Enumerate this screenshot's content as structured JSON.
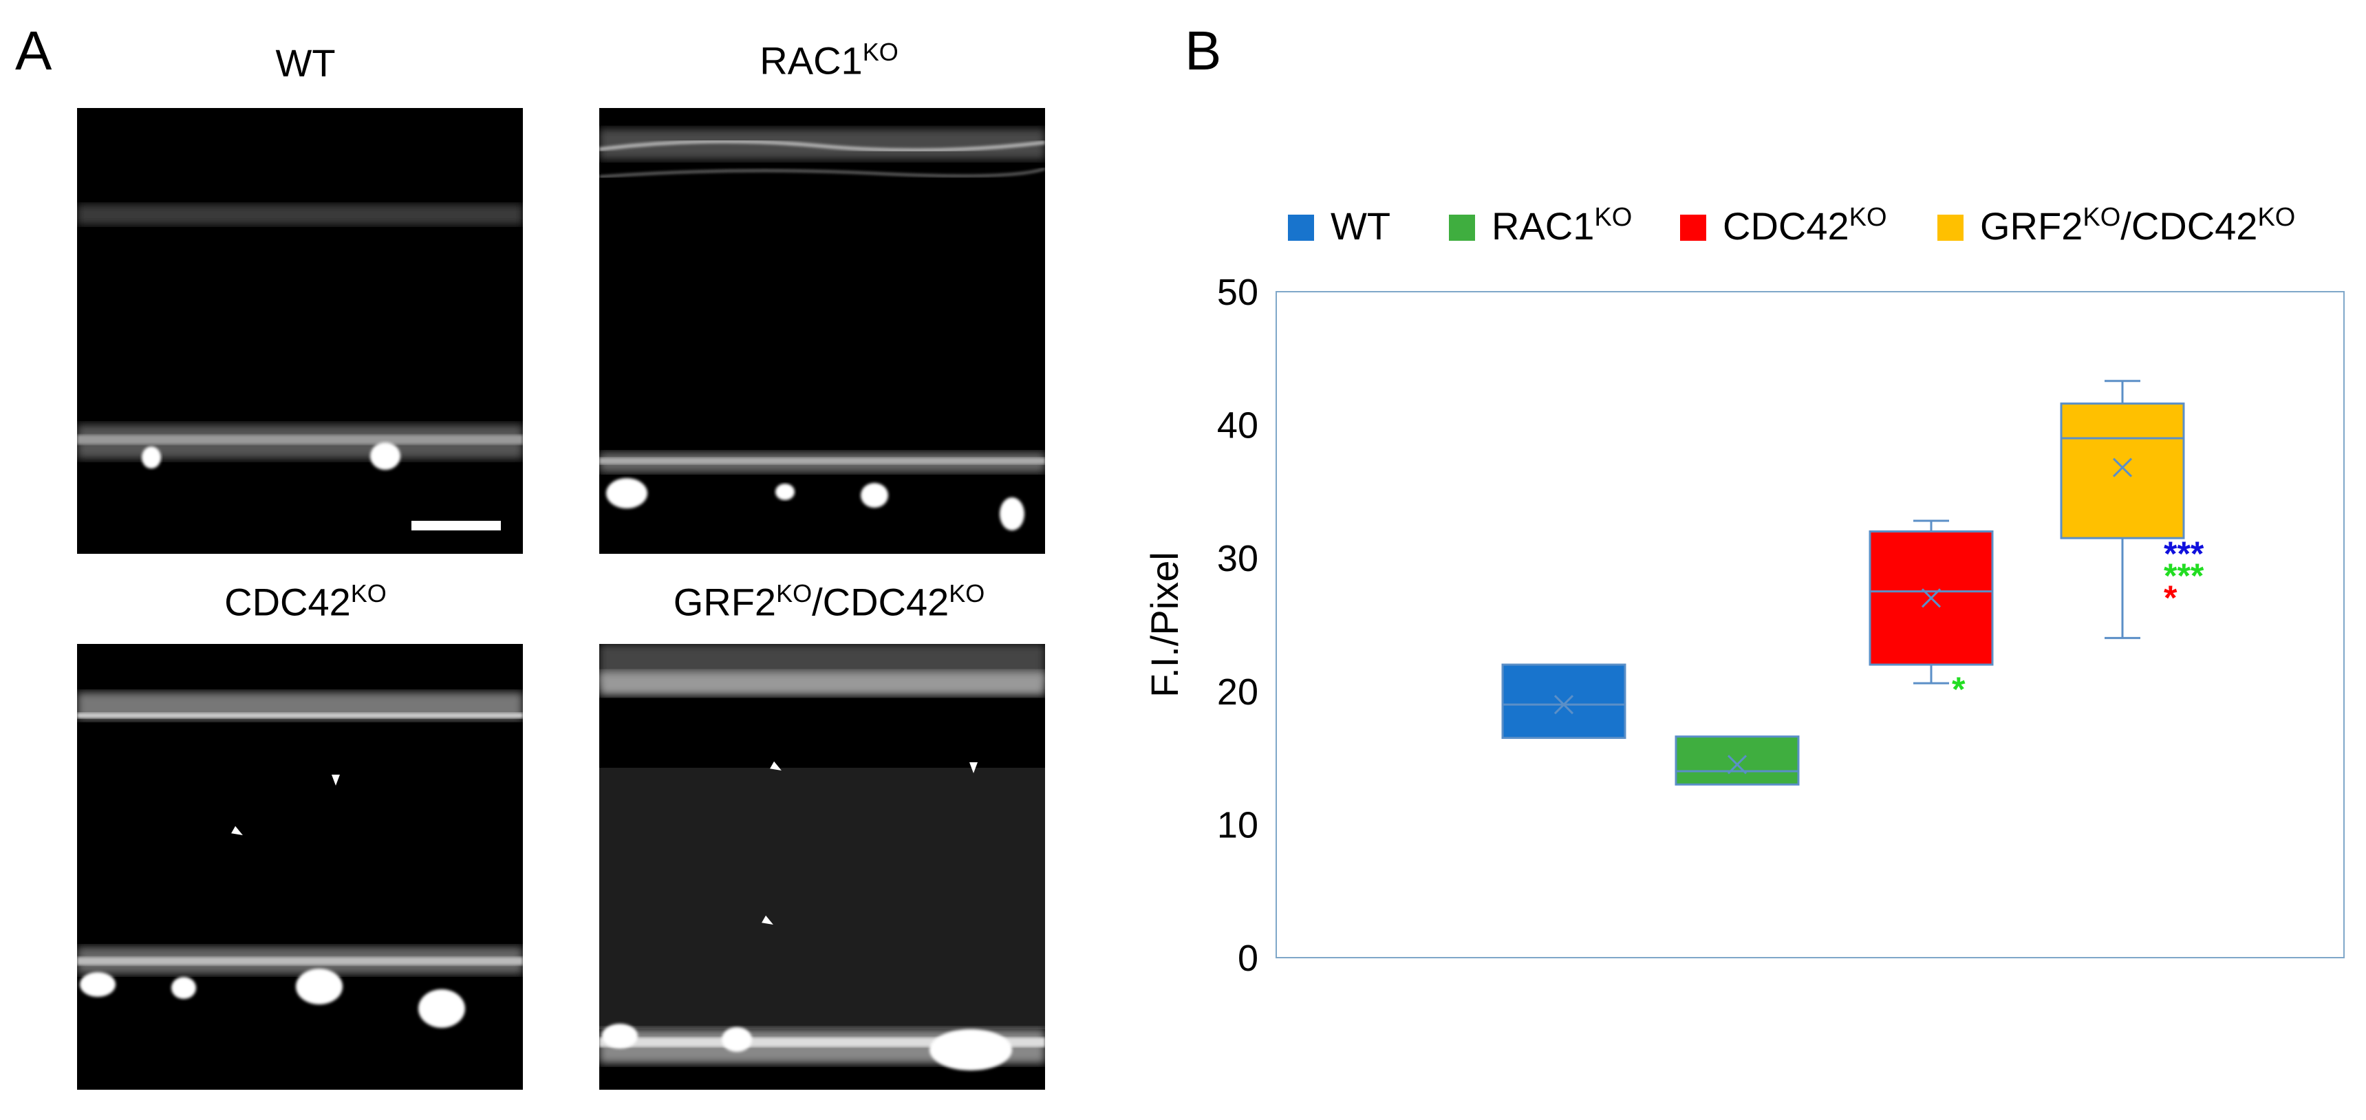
{
  "panels": {
    "a_label": "A",
    "b_label": "B"
  },
  "images": [
    {
      "base": "WT",
      "sup": ""
    },
    {
      "base": "RAC1",
      "sup": "KO"
    },
    {
      "base": "CDC42",
      "sup": "KO"
    },
    {
      "base": "GRF2",
      "sup": "KO",
      "tail": "/CDC42",
      "tail_sup": "KO"
    }
  ],
  "chart_data": {
    "type": "box",
    "ylabel": "F.I./Pixel",
    "ylim": [
      0,
      50
    ],
    "yticks": [
      0,
      10,
      20,
      30,
      40,
      50
    ],
    "grid": false,
    "legend_position": "top",
    "series": [
      {
        "name": "WT",
        "sup": "",
        "color": "#1874cd",
        "q1": 16.5,
        "median": 19.0,
        "q3": 22.0,
        "mean": 19.0,
        "whisker_low": null,
        "whisker_high": null,
        "significance": []
      },
      {
        "name": "RAC1",
        "sup": "KO",
        "color": "#3fae3f",
        "q1": 13.0,
        "median": 14.0,
        "q3": 16.6,
        "mean": 14.5,
        "whisker_low": null,
        "whisker_high": null,
        "significance": []
      },
      {
        "name": "CDC42",
        "sup": "KO",
        "color": "#ff0000",
        "q1": 22.0,
        "median": 27.5,
        "q3": 32.0,
        "mean": 27.0,
        "whisker_low": 20.6,
        "whisker_high": 32.8,
        "significance": [
          {
            "text": "*",
            "color": "#22dd22"
          }
        ]
      },
      {
        "name": "GRF2",
        "sup": "KO",
        "tail": "/CDC42",
        "tail_sup": "KO",
        "color": "#ffc000",
        "q1": 31.5,
        "median": 39.0,
        "q3": 41.6,
        "mean": 36.8,
        "whisker_low": 24.0,
        "whisker_high": 43.3,
        "significance": [
          {
            "text": "***",
            "color": "#1010dd"
          },
          {
            "text": "***",
            "color": "#22dd22"
          },
          {
            "text": "*",
            "color": "#ff0000"
          }
        ]
      }
    ]
  }
}
